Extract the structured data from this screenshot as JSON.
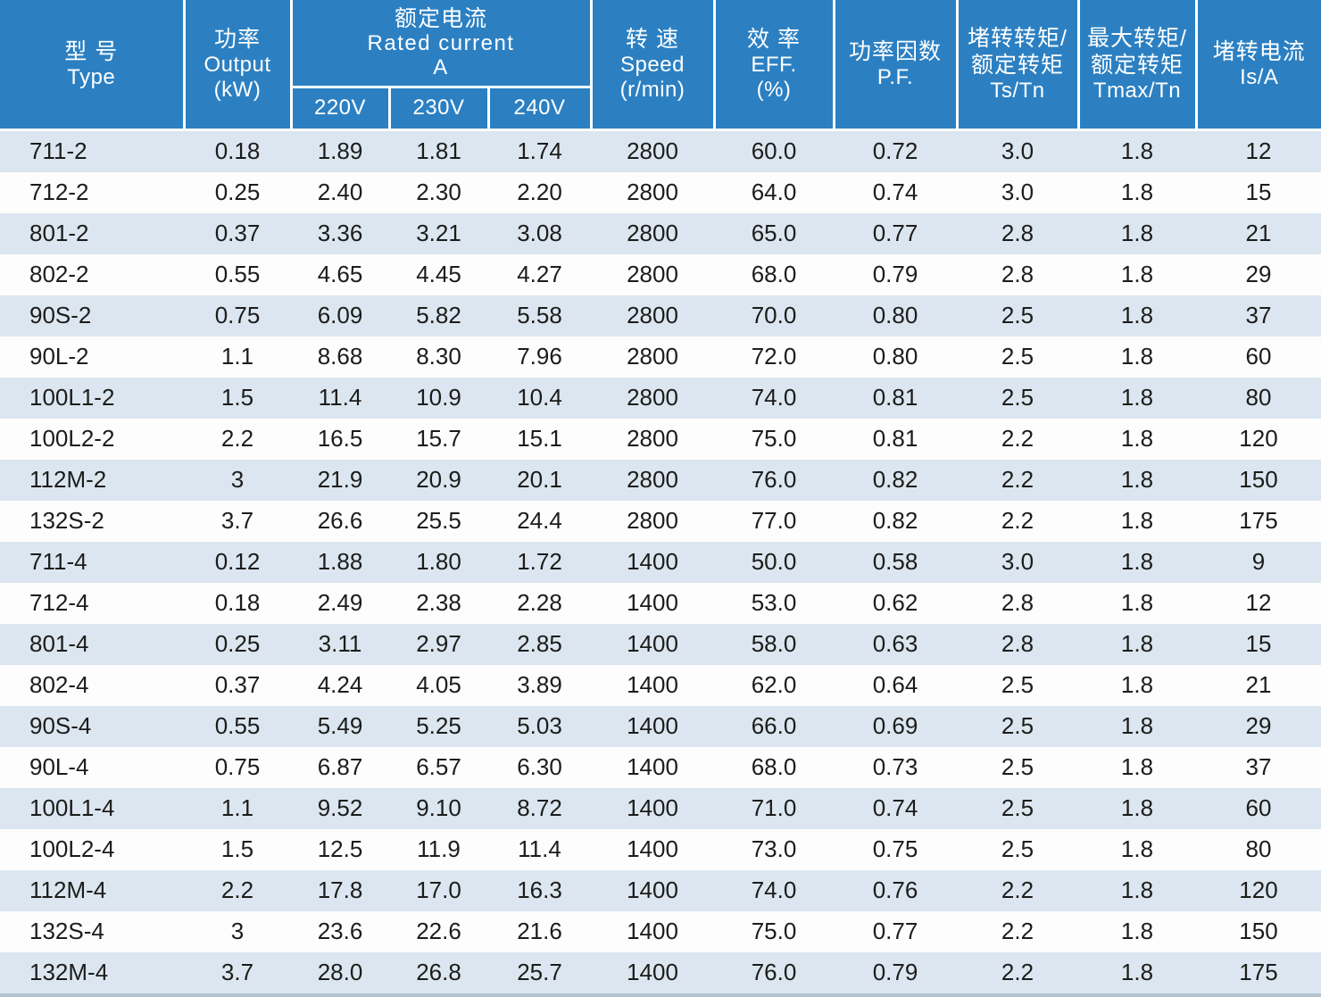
{
  "chart_data": {
    "type": "table",
    "header": {
      "type": [
        "型 号",
        "Type"
      ],
      "output": [
        "功率",
        "Output",
        "(kW)"
      ],
      "rated_current": [
        "额定电流",
        "Rated current",
        "A"
      ],
      "voltages": [
        "220V",
        "230V",
        "240V"
      ],
      "speed": [
        "转 速",
        "Speed",
        "(r/min)"
      ],
      "eff": [
        "效 率",
        "EFF.",
        "(%)"
      ],
      "pf": [
        "功率因数",
        "P.F."
      ],
      "ts_tn": [
        "堵转转矩/",
        "额定转矩",
        "Ts/Tn"
      ],
      "tmax_tn": [
        "最大转矩/",
        "额定转矩",
        "Tmax/Tn"
      ],
      "is_a": [
        "堵转电流",
        "Is/A"
      ]
    },
    "column_keys": [
      "type",
      "output-kw",
      "current-220v",
      "current-230v",
      "current-240v",
      "speed-rpm",
      "eff-pct",
      "pf",
      "ts-tn",
      "tmax-tn",
      "is-a"
    ],
    "rows": [
      [
        "711-2",
        "0.18",
        "1.89",
        "1.81",
        "1.74",
        "2800",
        "60.0",
        "0.72",
        "3.0",
        "1.8",
        "12"
      ],
      [
        "712-2",
        "0.25",
        "2.40",
        "2.30",
        "2.20",
        "2800",
        "64.0",
        "0.74",
        "3.0",
        "1.8",
        "15"
      ],
      [
        "801-2",
        "0.37",
        "3.36",
        "3.21",
        "3.08",
        "2800",
        "65.0",
        "0.77",
        "2.8",
        "1.8",
        "21"
      ],
      [
        "802-2",
        "0.55",
        "4.65",
        "4.45",
        "4.27",
        "2800",
        "68.0",
        "0.79",
        "2.8",
        "1.8",
        "29"
      ],
      [
        "90S-2",
        "0.75",
        "6.09",
        "5.82",
        "5.58",
        "2800",
        "70.0",
        "0.80",
        "2.5",
        "1.8",
        "37"
      ],
      [
        "90L-2",
        "1.1",
        "8.68",
        "8.30",
        "7.96",
        "2800",
        "72.0",
        "0.80",
        "2.5",
        "1.8",
        "60"
      ],
      [
        "100L1-2",
        "1.5",
        "11.4",
        "10.9",
        "10.4",
        "2800",
        "74.0",
        "0.81",
        "2.5",
        "1.8",
        "80"
      ],
      [
        "100L2-2",
        "2.2",
        "16.5",
        "15.7",
        "15.1",
        "2800",
        "75.0",
        "0.81",
        "2.2",
        "1.8",
        "120"
      ],
      [
        "112M-2",
        "3",
        "21.9",
        "20.9",
        "20.1",
        "2800",
        "76.0",
        "0.82",
        "2.2",
        "1.8",
        "150"
      ],
      [
        "132S-2",
        "3.7",
        "26.6",
        "25.5",
        "24.4",
        "2800",
        "77.0",
        "0.82",
        "2.2",
        "1.8",
        "175"
      ],
      [
        "711-4",
        "0.12",
        "1.88",
        "1.80",
        "1.72",
        "1400",
        "50.0",
        "0.58",
        "3.0",
        "1.8",
        "9"
      ],
      [
        "712-4",
        "0.18",
        "2.49",
        "2.38",
        "2.28",
        "1400",
        "53.0",
        "0.62",
        "2.8",
        "1.8",
        "12"
      ],
      [
        "801-4",
        "0.25",
        "3.11",
        "2.97",
        "2.85",
        "1400",
        "58.0",
        "0.63",
        "2.8",
        "1.8",
        "15"
      ],
      [
        "802-4",
        "0.37",
        "4.24",
        "4.05",
        "3.89",
        "1400",
        "62.0",
        "0.64",
        "2.5",
        "1.8",
        "21"
      ],
      [
        "90S-4",
        "0.55",
        "5.49",
        "5.25",
        "5.03",
        "1400",
        "66.0",
        "0.69",
        "2.5",
        "1.8",
        "29"
      ],
      [
        "90L-4",
        "0.75",
        "6.87",
        "6.57",
        "6.30",
        "1400",
        "68.0",
        "0.73",
        "2.5",
        "1.8",
        "37"
      ],
      [
        "100L1-4",
        "1.1",
        "9.52",
        "9.10",
        "8.72",
        "1400",
        "71.0",
        "0.74",
        "2.5",
        "1.8",
        "60"
      ],
      [
        "100L2-4",
        "1.5",
        "12.5",
        "11.9",
        "11.4",
        "1400",
        "73.0",
        "0.75",
        "2.5",
        "1.8",
        "80"
      ],
      [
        "112M-4",
        "2.2",
        "17.8",
        "17.0",
        "16.3",
        "1400",
        "74.0",
        "0.76",
        "2.2",
        "1.8",
        "120"
      ],
      [
        "132S-4",
        "3",
        "23.6",
        "22.6",
        "21.6",
        "1400",
        "75.0",
        "0.77",
        "2.2",
        "1.8",
        "150"
      ],
      [
        "132M-4",
        "3.7",
        "28.0",
        "26.8",
        "25.7",
        "1400",
        "76.0",
        "0.79",
        "2.2",
        "1.8",
        "175"
      ]
    ]
  },
  "colors": {
    "header_bg": "#2c80c2",
    "header_text": "#ffffff",
    "stripe_row_bg": "#dbe6f0",
    "plain_row_bg": "#fdfdfd",
    "body_text": "#1c1c1a",
    "bottom_edge": "#b6c4d0"
  }
}
